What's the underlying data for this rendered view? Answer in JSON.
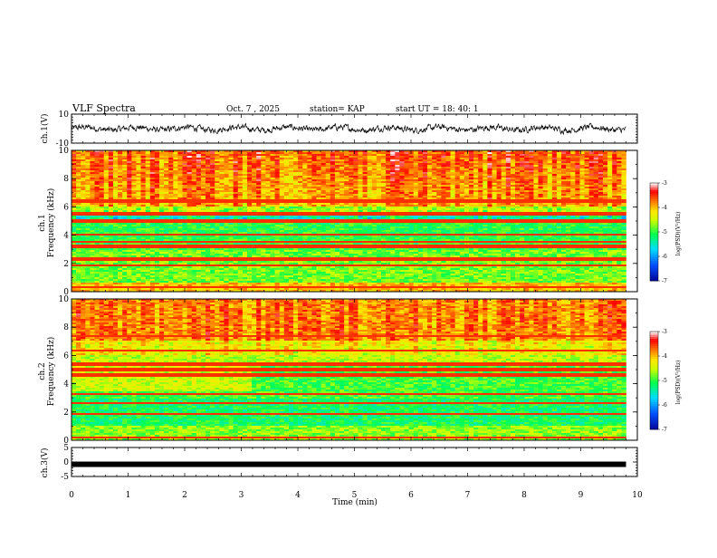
{
  "header": {
    "title": "VLF Spectra",
    "date": "Oct. 7 , 2025",
    "station": "station= KAP",
    "start_time": "start UT = 18: 40: 1"
  },
  "chart_data": [
    {
      "type": "line",
      "name": "ch1-waveform",
      "ylabel": "ch.1(V)",
      "ylim": [
        -10,
        10
      ],
      "yticks": [
        "10",
        "-10"
      ],
      "xlim": [
        0,
        10
      ],
      "description_series": "noisy voltage waveform, roughly -3 to 3 V, duration 0-9.8 min"
    },
    {
      "type": "heatmap",
      "name": "ch1-spectrogram",
      "ylabel": "ch.1\nFrequency (kHz)",
      "ylabel_line1": "ch.1",
      "ylabel_line2": "Frequency (kHz)",
      "ylim": [
        0,
        10
      ],
      "yticks": [
        "0",
        "2",
        "4",
        "6",
        "8",
        "10"
      ],
      "xlim": [
        0,
        10
      ],
      "colorbar": {
        "label": "log(PSD)(V²/Hz)",
        "range": [
          -7,
          -3
        ],
        "ticks": [
          "-3",
          "-4",
          "-5",
          "-6",
          "-7"
        ]
      }
    },
    {
      "type": "heatmap",
      "name": "ch2-spectrogram",
      "ylabel_line1": "ch.2",
      "ylabel_line2": "Frequency (kHz)",
      "ylim": [
        0,
        10
      ],
      "yticks": [
        "0",
        "2",
        "4",
        "6",
        "8",
        "10"
      ],
      "xlim": [
        0,
        10
      ],
      "colorbar": {
        "label": "log(PSD)(V²/Hz)",
        "range": [
          -7,
          -3
        ],
        "ticks": [
          "-3",
          "-4",
          "-5",
          "-6",
          "-7"
        ]
      }
    },
    {
      "type": "line",
      "name": "ch3-trace",
      "ylabel": "ch.3(V)",
      "ylim": [
        -5,
        5
      ],
      "yticks": [
        "5",
        "0",
        "-5"
      ],
      "xlim": [
        0,
        10
      ],
      "value": -0.8
    }
  ],
  "xaxis": {
    "label": "Time (min)",
    "ticks": [
      "0",
      "1",
      "2",
      "3",
      "4",
      "5",
      "6",
      "7",
      "8",
      "9",
      "10"
    ],
    "data_end": 9.8
  },
  "colors": {
    "waveform": "#000000",
    "spectrum_scale": [
      "#0000a0",
      "#0060ff",
      "#00e0ff",
      "#00ff60",
      "#ffff00",
      "#ff8000",
      "#ff0000",
      "#ffffff"
    ]
  }
}
